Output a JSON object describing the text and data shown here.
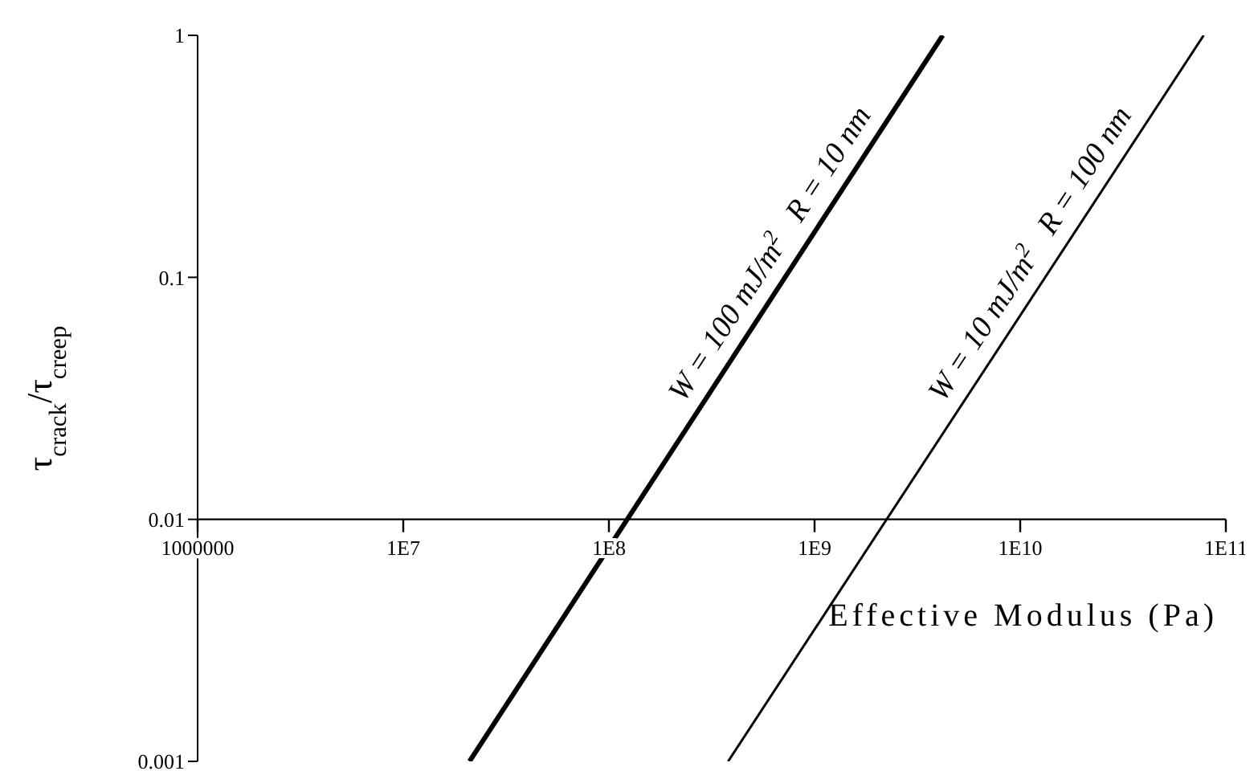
{
  "chart_data": {
    "type": "line",
    "xlabel": "Effective Modulus (Pa)",
    "ylabel": "τ$_{crack}$/τ$_{creep}$",
    "log": "xy",
    "grid": false,
    "marker": "none",
    "line_style": "solid",
    "xlim": [
      1000000,
      100000000000
    ],
    "xticks": [
      1000000,
      {
        "value": 10000000,
        "label": "1E7"
      },
      {
        "value": 100000000,
        "label": "1E8"
      },
      {
        "value": 1000000000,
        "label": "1E9"
      },
      {
        "value": 10000000000,
        "label": "1E10"
      },
      {
        "value": 100000000000,
        "label": "1E11"
      }
    ],
    "ylim": [
      0.001,
      1
    ],
    "yticks": [
      0.001,
      0.01,
      0.1,
      1
    ],
    "series": [
      {
        "name": "W = 100 mJ/m$^{2}$   R = 10 nm",
        "color": "#000000",
        "x": [
          21000000,
          4200000000
        ],
        "values": [
          0.001,
          1
        ]
      },
      {
        "name": "W = 10 mJ/m$^{2}$   R = 100 nm",
        "color": "#000000",
        "x": [
          380000000,
          78000000000
        ],
        "values": [
          0.001,
          1
        ]
      }
    ]
  }
}
